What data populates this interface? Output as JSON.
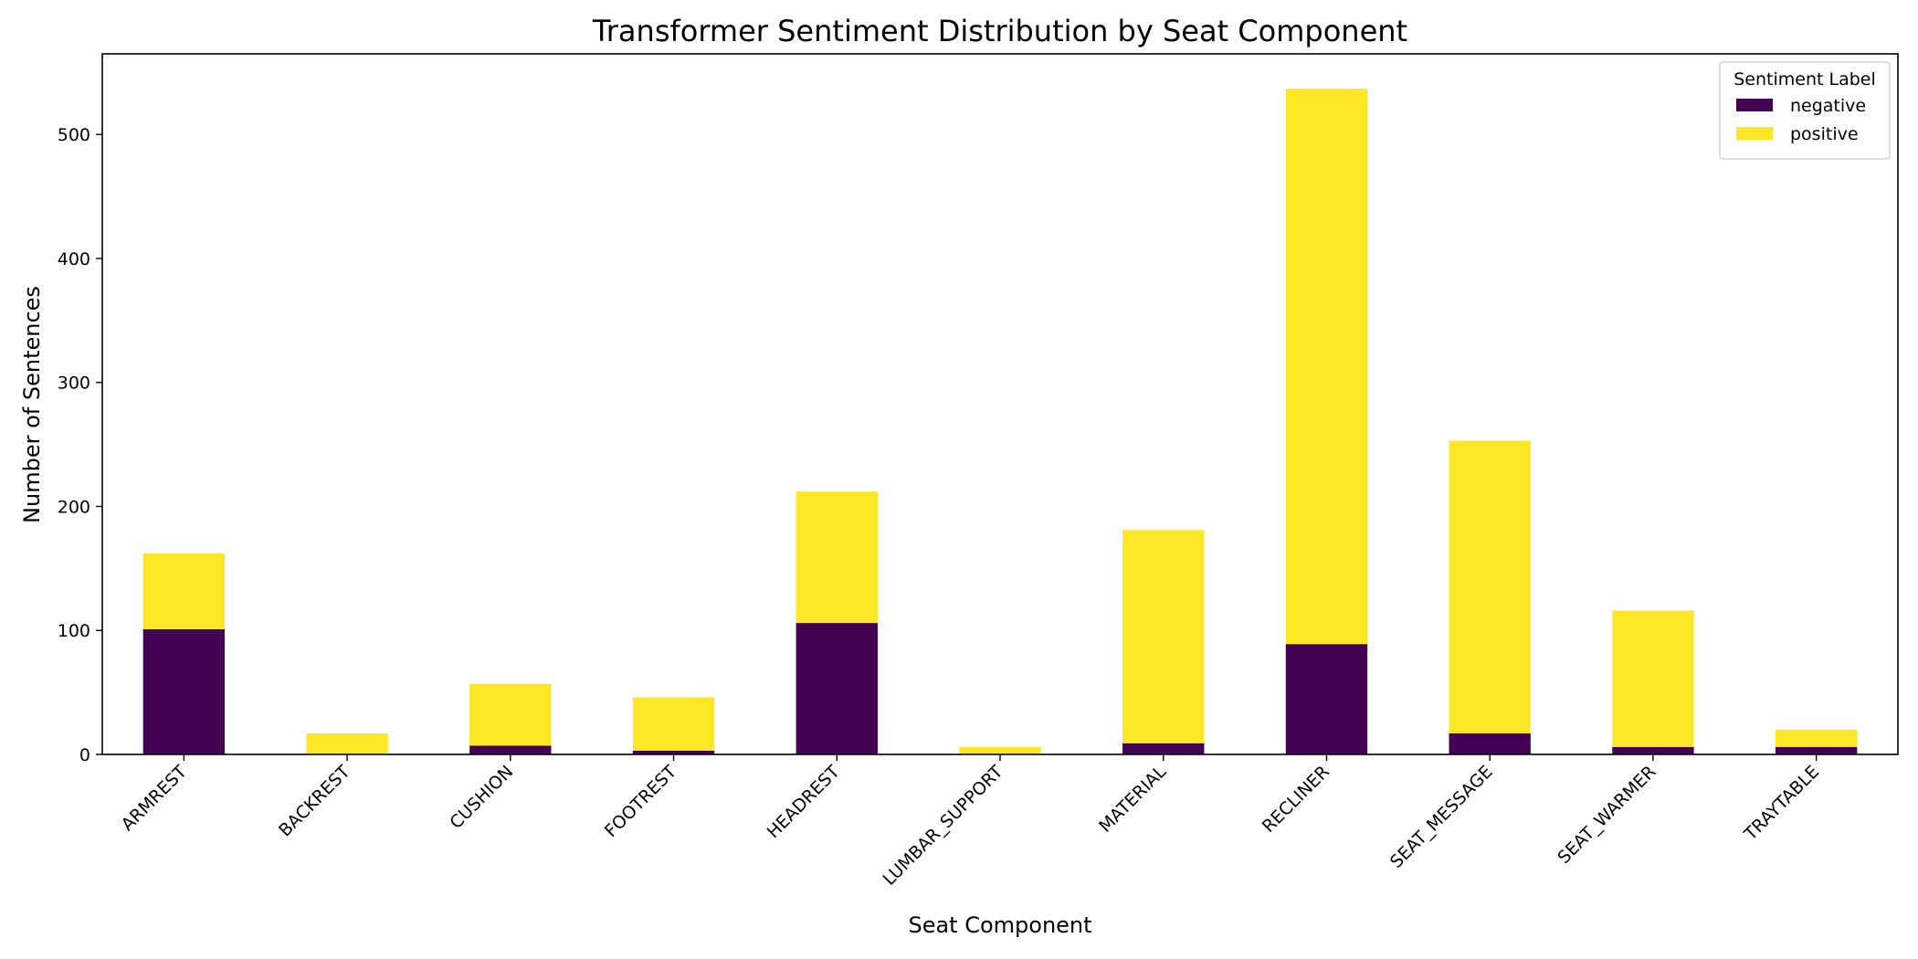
{
  "chart_data": {
    "type": "bar",
    "stacked": true,
    "title": "Transformer Sentiment Distribution by Seat Component",
    "xlabel": "Seat Component",
    "ylabel": "Number of Sentences",
    "ylim": [
      0,
      565
    ],
    "yticks": [
      0,
      100,
      200,
      300,
      400,
      500
    ],
    "grid": false,
    "legend_title": "Sentiment Label",
    "legend_position": "top-right",
    "categories": [
      "ARMREST",
      "BACKREST",
      "CUSHION",
      "FOOTREST",
      "HEADREST",
      "LUMBAR_SUPPORT",
      "MATERIAL",
      "RECLINER",
      "SEAT_MESSAGE",
      "SEAT_WARMER",
      "TRAYTABLE"
    ],
    "series": [
      {
        "name": "negative",
        "color": "#440154",
        "values": [
          101,
          0,
          7,
          3,
          106,
          0,
          9,
          89,
          17,
          6,
          6
        ]
      },
      {
        "name": "positive",
        "color": "#fde725",
        "values": [
          61,
          17,
          50,
          43,
          106,
          6,
          172,
          448,
          236,
          110,
          14
        ]
      }
    ]
  }
}
